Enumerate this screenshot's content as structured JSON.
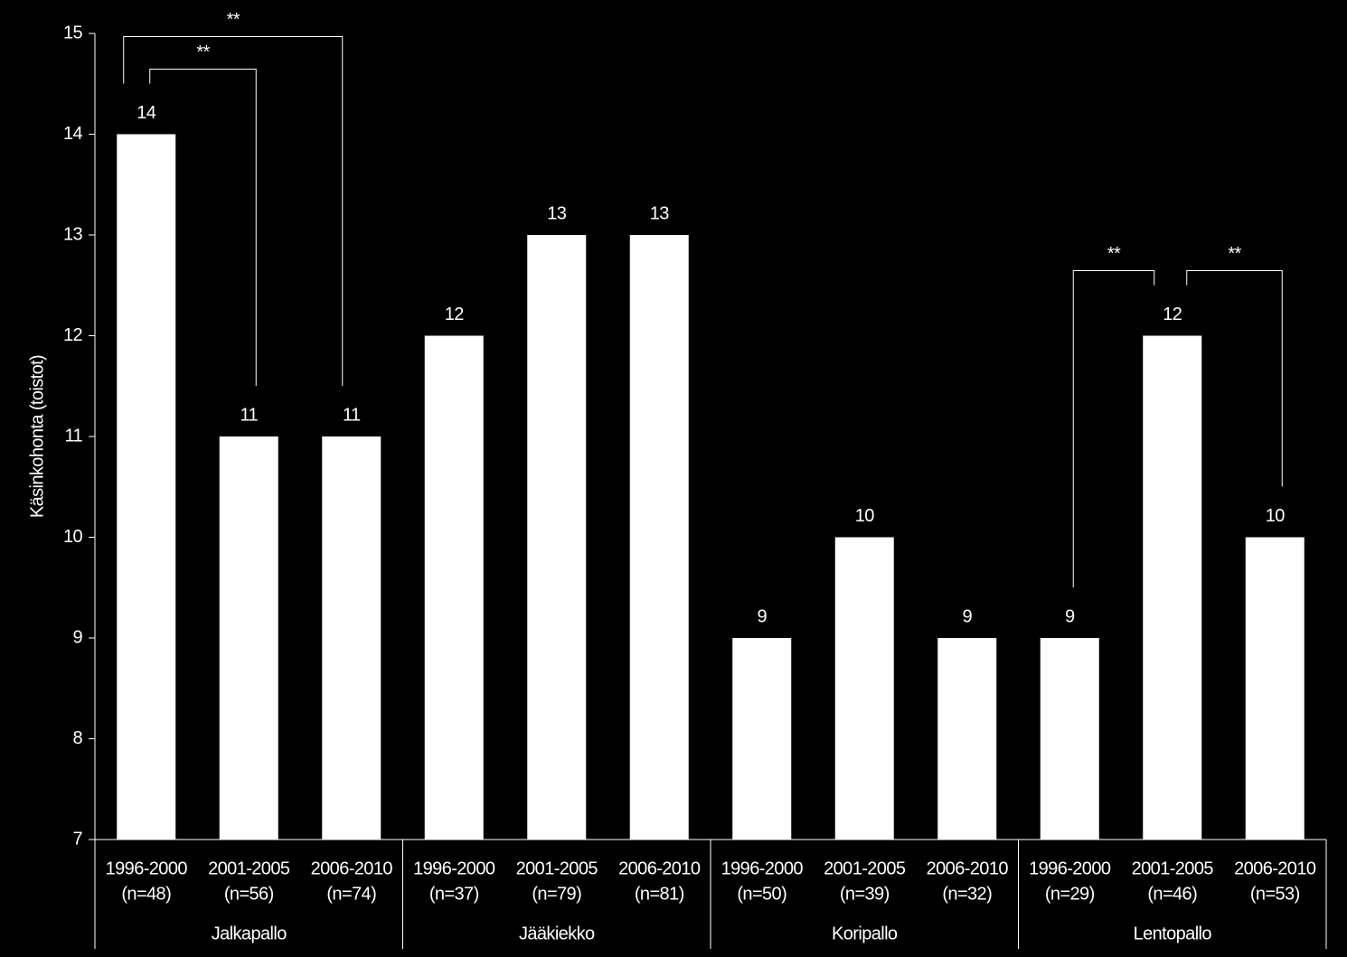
{
  "chart_data": {
    "type": "bar",
    "y_label": "Käsinkohonta (toistot)",
    "ylim": [
      7,
      15
    ],
    "yticks": [
      7,
      8,
      9,
      10,
      11,
      12,
      13,
      14,
      15
    ],
    "color": "#ffffff",
    "groups": [
      {
        "name": "Jalkapallo",
        "categories": [
          "1996-2000",
          "2001-2005",
          "2006-2010"
        ],
        "n": [
          "(n=48)",
          "(n=56)",
          "(n=74)"
        ],
        "values": [
          14,
          11,
          11
        ],
        "significance": [
          {
            "label": "**",
            "from": 0,
            "to": 1
          },
          {
            "label": "**",
            "from": 0,
            "to": 2
          }
        ]
      },
      {
        "name": "Jääkiekko",
        "categories": [
          "1996-2000",
          "2001-2005",
          "2006-2010"
        ],
        "n": [
          "(n=37)",
          "(n=79)",
          "(n=81)"
        ],
        "values": [
          12,
          13,
          13
        ],
        "significance": []
      },
      {
        "name": "Koripallo",
        "categories": [
          "1996-2000",
          "2001-2005",
          "2006-2010"
        ],
        "n": [
          "(n=50)",
          "(n=39)",
          "(n=32)"
        ],
        "values": [
          9,
          10,
          9
        ],
        "significance": []
      },
      {
        "name": "Lentopallo",
        "categories": [
          "1996-2000",
          "2001-2005",
          "2006-2010"
        ],
        "n": [
          "(n=29)",
          "(n=46)",
          "(n=53)"
        ],
        "values": [
          9,
          12,
          10
        ],
        "significance": [
          {
            "label": "**",
            "from": 0,
            "to": 1
          },
          {
            "label": "**",
            "from": 1,
            "to": 2
          }
        ]
      }
    ]
  }
}
